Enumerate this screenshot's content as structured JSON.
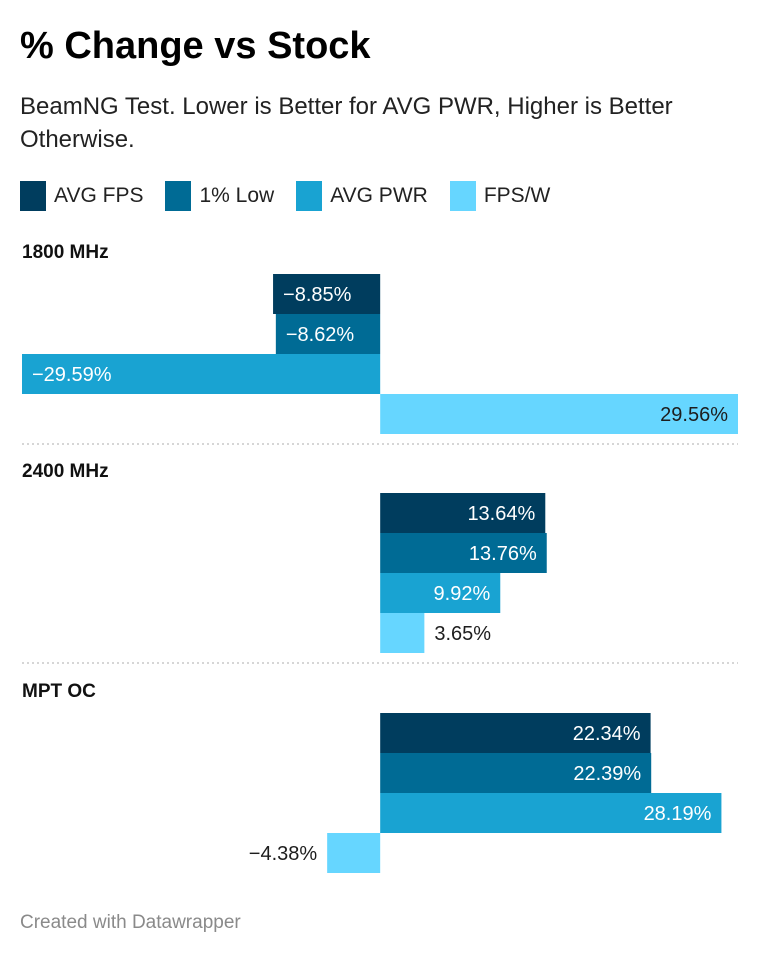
{
  "header": {
    "title": "% Change vs Stock",
    "subtitle": "BeamNG Test. Lower is Better for AVG PWR, Higher is Better Otherwise."
  },
  "footer": {
    "credit": "Created with Datawrapper"
  },
  "chart_data": {
    "type": "bar",
    "orientation": "horizontal",
    "categories": [
      "1800 MHz",
      "2400 MHz",
      "MPT OC"
    ],
    "series": [
      {
        "name": "AVG FPS",
        "color": "#003d5e",
        "values": [
          -8.85,
          13.64,
          22.34
        ],
        "labels": [
          "−8.85%",
          "13.64%",
          "22.34%"
        ]
      },
      {
        "name": "1% Low",
        "color": "#006b95",
        "values": [
          -8.62,
          13.76,
          22.39
        ],
        "labels": [
          "−8.62%",
          "13.76%",
          "22.39%"
        ]
      },
      {
        "name": "AVG PWR",
        "color": "#19a3d2",
        "values": [
          -29.59,
          9.92,
          28.19
        ],
        "labels": [
          "−29.59%",
          "9.92%",
          "28.19%"
        ]
      },
      {
        "name": "FPS/W",
        "color": "#66d6ff",
        "values": [
          29.56,
          3.65,
          -4.38
        ],
        "labels": [
          "29.56%",
          "3.65%",
          "−4.38%"
        ]
      }
    ],
    "xlim": [
      -29.59,
      29.56
    ],
    "legend": "top-left",
    "grid": false
  }
}
